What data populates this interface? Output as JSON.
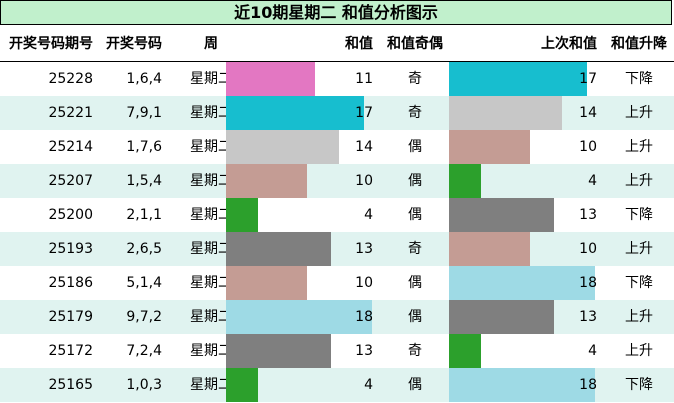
{
  "title": "近10期星期二 和值分析图示",
  "headers": {
    "issue": "开奖号码期号",
    "numbers": "开奖号码",
    "weekday": "周",
    "sum": "和值",
    "parity": "和值奇偶",
    "prev_sum": "上次和值",
    "trend": "和值升降"
  },
  "bar_scale_max": 19,
  "colors": {
    "header_bg": "#c1f0cc",
    "row_shade": "#e0f3f0",
    "sum_4": "#2ca02c",
    "sum_10": "#c49c94",
    "sum_11": "#e377c2",
    "sum_13": "#7f7f7f",
    "sum_14": "#c7c7c7",
    "sum_17": "#17becf",
    "sum_18": "#9edae5"
  },
  "rows": [
    {
      "issue": "25228",
      "numbers": "1,6,4",
      "weekday": "星期二",
      "sum": 11,
      "parity": "奇",
      "prev_sum": 17,
      "trend": "下降"
    },
    {
      "issue": "25221",
      "numbers": "7,9,1",
      "weekday": "星期二",
      "sum": 17,
      "parity": "奇",
      "prev_sum": 14,
      "trend": "上升"
    },
    {
      "issue": "25214",
      "numbers": "1,7,6",
      "weekday": "星期二",
      "sum": 14,
      "parity": "偶",
      "prev_sum": 10,
      "trend": "上升"
    },
    {
      "issue": "25207",
      "numbers": "1,5,4",
      "weekday": "星期二",
      "sum": 10,
      "parity": "偶",
      "prev_sum": 4,
      "trend": "上升"
    },
    {
      "issue": "25200",
      "numbers": "2,1,1",
      "weekday": "星期二",
      "sum": 4,
      "parity": "偶",
      "prev_sum": 13,
      "trend": "下降"
    },
    {
      "issue": "25193",
      "numbers": "2,6,5",
      "weekday": "星期二",
      "sum": 13,
      "parity": "奇",
      "prev_sum": 10,
      "trend": "上升"
    },
    {
      "issue": "25186",
      "numbers": "5,1,4",
      "weekday": "星期二",
      "sum": 10,
      "parity": "偶",
      "prev_sum": 18,
      "trend": "下降"
    },
    {
      "issue": "25179",
      "numbers": "9,7,2",
      "weekday": "星期二",
      "sum": 18,
      "parity": "偶",
      "prev_sum": 13,
      "trend": "上升"
    },
    {
      "issue": "25172",
      "numbers": "7,2,4",
      "weekday": "星期二",
      "sum": 13,
      "parity": "奇",
      "prev_sum": 4,
      "trend": "上升"
    },
    {
      "issue": "25165",
      "numbers": "1,0,3",
      "weekday": "星期二",
      "sum": 4,
      "parity": "偶",
      "prev_sum": 18,
      "trend": "下降"
    }
  ]
}
